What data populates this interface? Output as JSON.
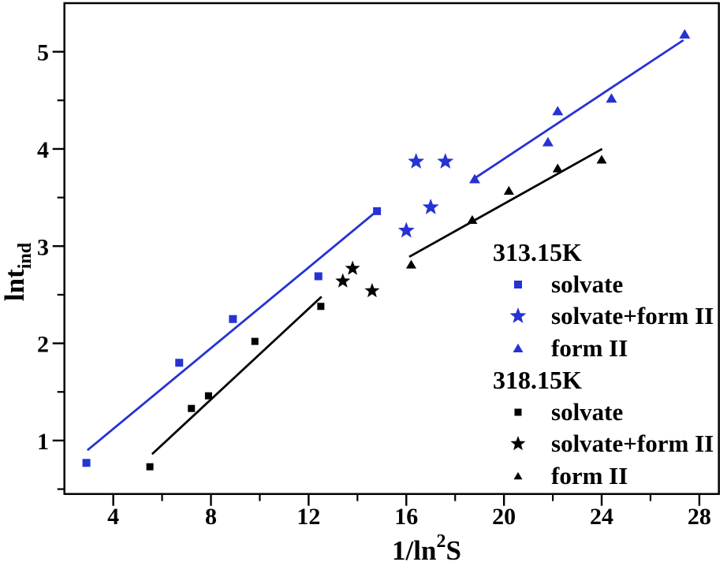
{
  "figure": {
    "background": "#ffffff",
    "frame_color": "#000000",
    "accent_blue": "#2533d3",
    "accent_black": "#000000"
  },
  "chart_data": {
    "type": "scatter",
    "title": "",
    "xlabel": "1/ln2S",
    "ylabel": "lntind",
    "xlim": [
      2.0,
      28.8
    ],
    "ylim": [
      0.45,
      5.5
    ],
    "grid": false,
    "legend_position": "inside-right",
    "x_ticks_major": [
      4,
      8,
      12,
      16,
      20,
      24,
      28
    ],
    "x_ticks_minor": [
      6,
      10,
      14,
      18,
      22,
      26
    ],
    "y_ticks_major": [
      1,
      2,
      3,
      4,
      5
    ],
    "y_ticks_minor": [
      0.5,
      1.5,
      2.5,
      3.5,
      4.5
    ],
    "axis_titles": {
      "x": {
        "prefix": "1/ln",
        "sup": "2",
        "suffix": "S"
      },
      "y": {
        "prefix": "lnt",
        "sub": "ind"
      }
    },
    "series": [
      {
        "name": "313.15K solvate",
        "marker": "square",
        "color": "#2533d3",
        "marker_size": 10,
        "points": [
          [
            2.9,
            0.77
          ],
          [
            6.7,
            1.8
          ],
          [
            8.9,
            2.25
          ],
          [
            12.4,
            2.69
          ],
          [
            14.8,
            3.36
          ]
        ]
      },
      {
        "name": "313.15K solvate+form II",
        "marker": "star",
        "color": "#2533d3",
        "marker_size": 11,
        "points": [
          [
            16.0,
            3.16
          ],
          [
            16.4,
            3.87
          ],
          [
            17.0,
            3.4
          ],
          [
            17.6,
            3.87
          ]
        ]
      },
      {
        "name": "313.15K form II",
        "marker": "triangle",
        "color": "#2533d3",
        "marker_size": 14,
        "points": [
          [
            18.8,
            3.69
          ],
          [
            21.8,
            4.07
          ],
          [
            22.2,
            4.39
          ],
          [
            24.4,
            4.52
          ],
          [
            27.4,
            5.18
          ]
        ]
      },
      {
        "name": "318.15K solvate",
        "marker": "square",
        "color": "#000000",
        "marker_size": 9,
        "points": [
          [
            5.5,
            0.73
          ],
          [
            7.2,
            1.33
          ],
          [
            7.9,
            1.46
          ],
          [
            9.8,
            2.02
          ],
          [
            12.5,
            2.38
          ]
        ]
      },
      {
        "name": "318.15K solvate+form II",
        "marker": "star",
        "color": "#000000",
        "marker_size": 10,
        "points": [
          [
            13.4,
            2.64
          ],
          [
            13.8,
            2.77
          ],
          [
            14.6,
            2.54
          ]
        ]
      },
      {
        "name": "318.15K form II",
        "marker": "triangle",
        "color": "#000000",
        "marker_size": 13,
        "points": [
          [
            16.2,
            2.81
          ],
          [
            18.7,
            3.27
          ],
          [
            20.2,
            3.57
          ],
          [
            22.2,
            3.8
          ],
          [
            24.0,
            3.89
          ]
        ]
      }
    ],
    "fit_lines": [
      {
        "series": "313.15K solvate",
        "color": "#2533d3",
        "from": [
          2.94,
          0.9
        ],
        "to": [
          14.79,
          3.36
        ]
      },
      {
        "series": "313.15K form II",
        "color": "#2533d3",
        "from": [
          18.75,
          3.69
        ],
        "to": [
          27.35,
          5.12
        ]
      },
      {
        "series": "318.15K solvate",
        "color": "#000000",
        "from": [
          5.59,
          0.86
        ],
        "to": [
          12.53,
          2.48
        ]
      },
      {
        "series": "318.15K form II",
        "color": "#000000",
        "from": [
          16.12,
          2.89
        ],
        "to": [
          24.02,
          4.0
        ]
      }
    ],
    "legend": {
      "groups": [
        {
          "header": "313.15K",
          "items": [
            {
              "label": "solvate",
              "marker": "square",
              "color": "#2533d3",
              "size": 10
            },
            {
              "label": "solvate+form II",
              "marker": "star",
              "color": "#2533d3",
              "size": 11
            },
            {
              "label": "form II",
              "marker": "triangle",
              "color": "#2533d3",
              "size": 13
            }
          ]
        },
        {
          "header": "318.15K",
          "items": [
            {
              "label": "solvate",
              "marker": "square",
              "color": "#000000",
              "size": 9
            },
            {
              "label": "solvate+form II",
              "marker": "star",
              "color": "#000000",
              "size": 10
            },
            {
              "label": "form II",
              "marker": "triangle",
              "color": "#000000",
              "size": 11
            }
          ]
        }
      ]
    }
  }
}
